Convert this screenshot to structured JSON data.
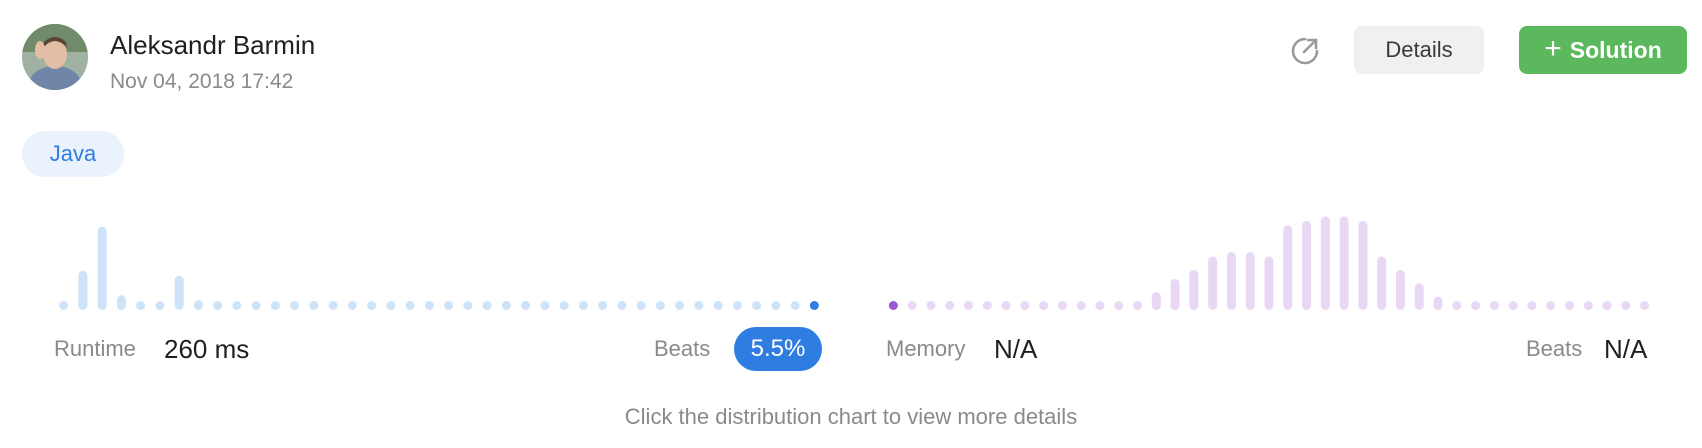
{
  "submission": {
    "user_name": "Aleksandr Barmin",
    "timestamp": "Nov 04, 2018 17:42",
    "language": "Java"
  },
  "actions": {
    "details_label": "Details",
    "solution_label": "Solution",
    "share_icon": "share-icon",
    "plus_icon": "plus-icon"
  },
  "runtime": {
    "label": "Runtime",
    "value": "260 ms",
    "beats_label": "Beats",
    "beats_value": "5.5%"
  },
  "memory": {
    "label": "Memory",
    "value": "N/A",
    "beats_label": "Beats",
    "beats_value": "N/A"
  },
  "hint": "Click the distribution chart to view more details",
  "colors": {
    "runtime_bar": "#cfe3f8",
    "runtime_marker": "#2f7de1",
    "memory_bar": "#e9d8f4",
    "memory_marker": "#9b59d0",
    "solution_button": "#5cb85c"
  },
  "chart_data": [
    {
      "type": "bar",
      "name": "runtime-distribution",
      "values": [
        1,
        8,
        17,
        3,
        1,
        1,
        7,
        2,
        1,
        1,
        1,
        1,
        1,
        1,
        1,
        1,
        1,
        1,
        1,
        1,
        1,
        1,
        1,
        1,
        1,
        1,
        1,
        1,
        1,
        1,
        1,
        1,
        1,
        1,
        1,
        1,
        1,
        1,
        1,
        1
      ],
      "highlight_index": 39,
      "ylim": [
        0,
        20
      ]
    },
    {
      "type": "bar",
      "name": "memory-distribution",
      "values": [
        1,
        1,
        1,
        1,
        1,
        1,
        1,
        1,
        1,
        1,
        1,
        1,
        1,
        1,
        4,
        7,
        9,
        12,
        13,
        13,
        12,
        19,
        20,
        21,
        21,
        20,
        12,
        9,
        6,
        3,
        2,
        1,
        1,
        1,
        1,
        1,
        1,
        1,
        1,
        1,
        1
      ],
      "highlight_index": 0,
      "ylim": [
        0,
        22
      ]
    }
  ]
}
